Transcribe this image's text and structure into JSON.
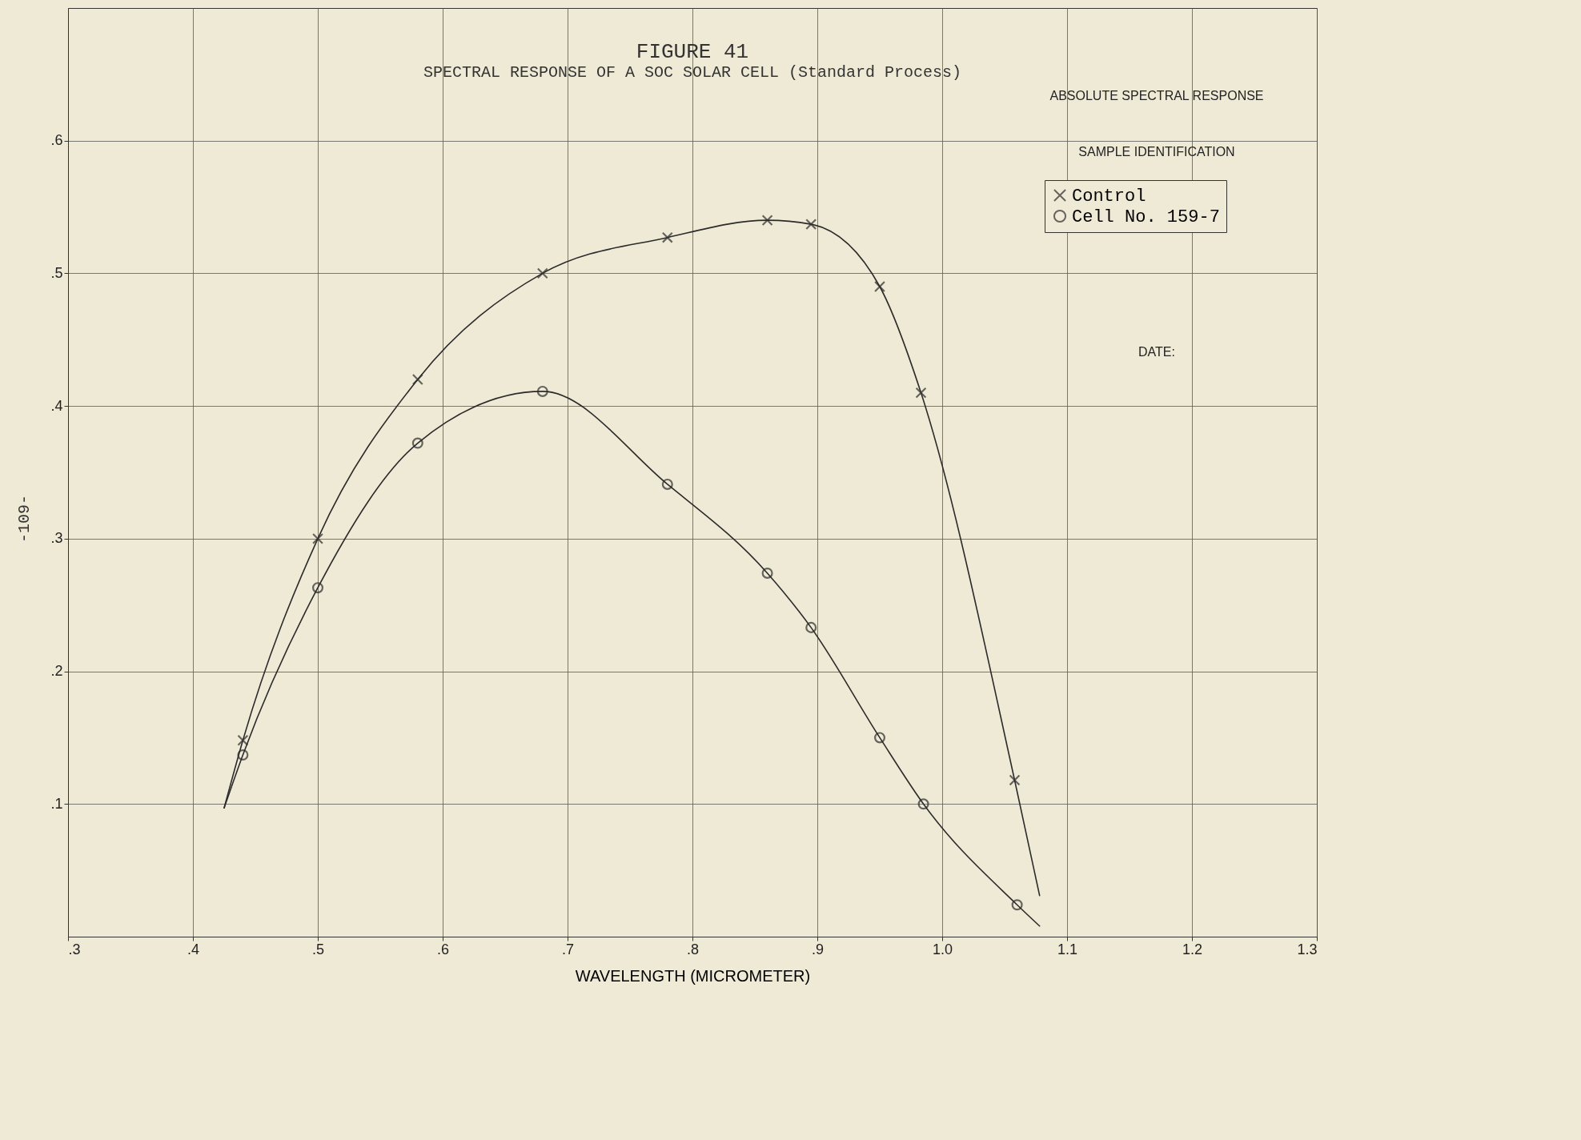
{
  "chart_data": {
    "type": "scatter",
    "title": "FIGURE 41",
    "subtitle": "SPECTRAL RESPONSE OF A SOC SOLAR CELL (Standard Process)",
    "xlabel": "WAVELENGTH (MICROMETER)",
    "annotations": [
      "ABSOLUTE SPECTRAL RESPONSE",
      "SAMPLE IDENTIFICATION",
      "DATE:",
      "-109-"
    ],
    "xlim": [
      0.3,
      1.3
    ],
    "xticks": [
      {
        "value": 0.3,
        "label": ".3"
      },
      {
        "value": 0.4,
        "label": ".4"
      },
      {
        "value": 0.5,
        "label": ".5"
      },
      {
        "value": 0.6,
        "label": ".6"
      },
      {
        "value": 0.7,
        "label": ".7"
      },
      {
        "value": 0.8,
        "label": ".8"
      },
      {
        "value": 0.9,
        "label": ".9"
      },
      {
        "value": 1.0,
        "label": "1.0"
      },
      {
        "value": 1.1,
        "label": "1.1"
      },
      {
        "value": 1.2,
        "label": "1.2"
      },
      {
        "value": 1.3,
        "label": "1.3"
      }
    ],
    "ylim": [
      0,
      0.7
    ],
    "yticks": [
      {
        "value": 0.1,
        "label": ".1"
      },
      {
        "value": 0.2,
        "label": ".2"
      },
      {
        "value": 0.3,
        "label": ".3"
      },
      {
        "value": 0.4,
        "label": ".4"
      },
      {
        "value": 0.5,
        "label": ".5"
      },
      {
        "value": 0.6,
        "label": ".6"
      }
    ],
    "grid": true,
    "legend": "top right",
    "series": [
      {
        "name": "Control",
        "color": "#2b2b2b",
        "marker": "cross",
        "x": [
          0.44,
          0.5,
          0.58,
          0.68,
          0.78,
          0.86,
          0.895,
          0.95,
          0.983,
          1.058
        ],
        "values": [
          0.148,
          0.3,
          0.42,
          0.5,
          0.527,
          0.54,
          0.537,
          0.49,
          0.41,
          0.118
        ]
      },
      {
        "name": "Cell No. 159-7",
        "color": "#2b2b2b",
        "marker": "circle",
        "x": [
          0.44,
          0.5,
          0.58,
          0.68,
          0.78,
          0.86,
          0.895,
          0.95,
          0.985,
          1.06
        ],
        "values": [
          0.137,
          0.263,
          0.372,
          0.411,
          0.341,
          0.274,
          0.233,
          0.15,
          0.1,
          0.024
        ]
      },
      {
        "type": "line",
        "color": "#2b2b2b",
        "x": [
          0.425,
          0.44,
          0.5,
          0.58,
          0.68,
          0.78,
          0.86,
          0.895,
          0.95,
          0.983,
          1.058,
          1.078
        ],
        "values": [
          0.097,
          0.148,
          0.3,
          0.42,
          0.5,
          0.527,
          0.54,
          0.537,
          0.49,
          0.41,
          0.118,
          0.031
        ]
      },
      {
        "type": "line",
        "color": "#2b2b2b",
        "x": [
          0.425,
          0.44,
          0.5,
          0.58,
          0.68,
          0.78,
          0.86,
          0.895,
          0.95,
          0.985,
          1.06,
          1.078
        ],
        "values": [
          0.097,
          0.137,
          0.263,
          0.372,
          0.411,
          0.341,
          0.274,
          0.233,
          0.15,
          0.1,
          0.024,
          0.008
        ]
      }
    ]
  }
}
